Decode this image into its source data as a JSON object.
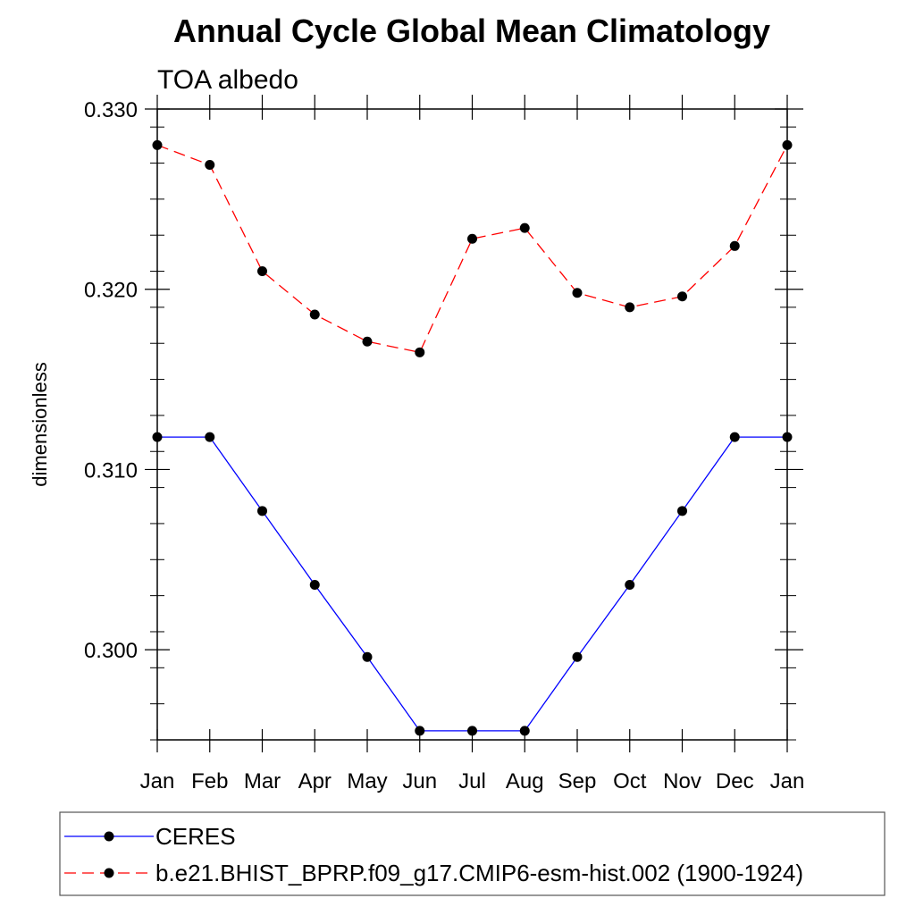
{
  "chart_data": {
    "type": "line",
    "title": "Annual Cycle Global Mean Climatology",
    "subtitle": "TOA albedo",
    "xlabel": "",
    "ylabel": "dimensionless",
    "categories": [
      "Jan",
      "Feb",
      "Mar",
      "Apr",
      "May",
      "Jun",
      "Jul",
      "Aug",
      "Sep",
      "Oct",
      "Nov",
      "Dec",
      "Jan"
    ],
    "ylim": [
      0.295,
      0.33
    ],
    "yticks": [
      0.3,
      0.31,
      0.32,
      0.33
    ],
    "ytick_labels": [
      "0.300",
      "0.310",
      "0.320",
      "0.330"
    ],
    "grid": false,
    "legend_placement": "bottom",
    "series": [
      {
        "name": "CERES",
        "color": "#0000ff",
        "line_style": "solid",
        "marker": "filled-circle",
        "values": [
          0.3118,
          0.3118,
          0.3077,
          0.3036,
          0.2996,
          0.2955,
          0.2955,
          0.2955,
          0.2996,
          0.3036,
          0.3077,
          0.3118,
          0.3118
        ]
      },
      {
        "name": "b.e21.BHIST_BPRP.f09_g17.CMIP6-esm-hist.002 (1900-1924)",
        "color": "#ff0000",
        "line_style": "dashed",
        "marker": "filled-circle",
        "values": [
          0.328,
          0.3269,
          0.321,
          0.3186,
          0.3171,
          0.3165,
          0.3228,
          0.3234,
          0.3198,
          0.319,
          0.3196,
          0.3224,
          0.328
        ]
      }
    ]
  }
}
